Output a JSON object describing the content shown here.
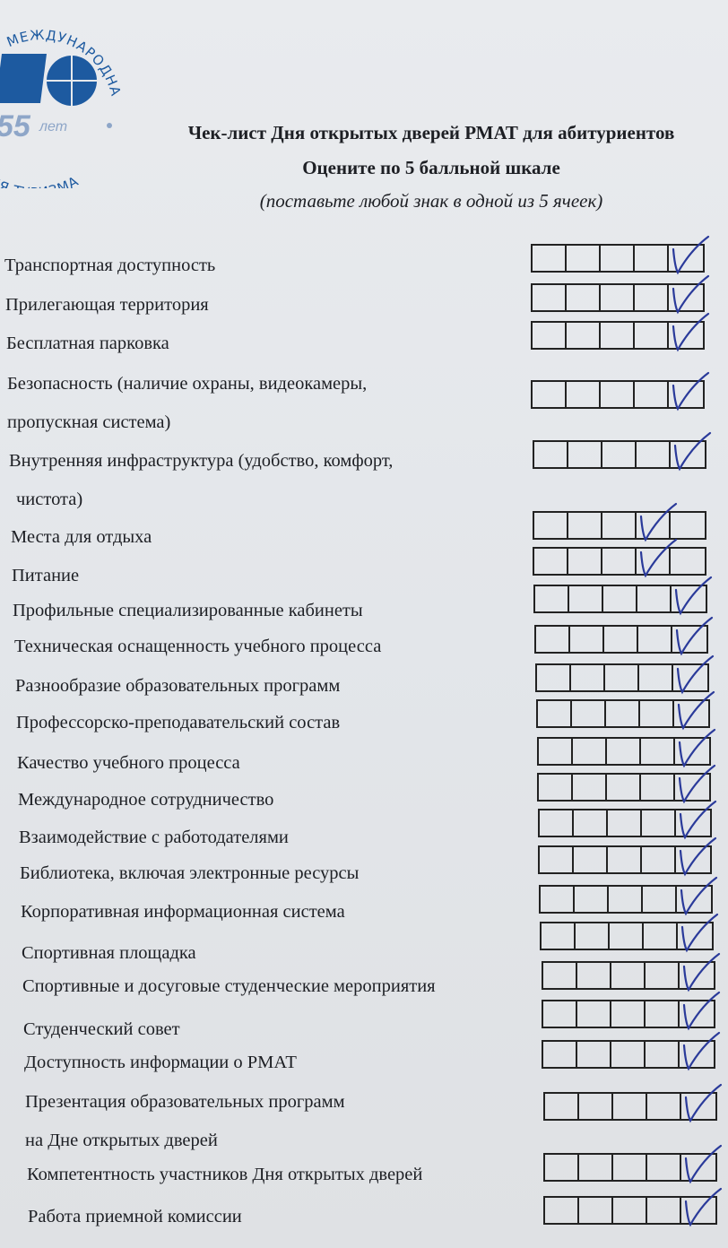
{
  "logo": {
    "arc_text_top": "МЕЖДУНАРОДНАЯ",
    "arc_text_bottom": "ИЯ ТУРИЗМА",
    "years": "55",
    "years_suffix": "лет",
    "color": "#1d5aa0"
  },
  "header": {
    "title": "Чек-лист Дня открытых дверей РМАТ для абитуриентов",
    "subtitle": "Оцените по 5 балльной шкале",
    "instruction": "(поставьте любой знак в одной из 5 ячеек)"
  },
  "scale_max": 5,
  "check_color": "#2a3a9a",
  "items": [
    {
      "label": "Транспортная доступность",
      "rating": 5
    },
    {
      "label": "Прилегающая территория",
      "rating": 5
    },
    {
      "label": "Бесплатная парковка",
      "rating": 5
    },
    {
      "label": "Безопасность (наличие охраны, видеокамеры,",
      "label2": "пропускная система)",
      "rating": 5
    },
    {
      "label": "Внутренняя инфраструктура (удобство, комфорт,",
      "label2": "чистота)",
      "rating": 5
    },
    {
      "label": "Места для отдыха",
      "rating": 4
    },
    {
      "label": "Питание",
      "rating": 4
    },
    {
      "label": "Профильные специализированные кабинеты",
      "rating": 5
    },
    {
      "label": "Техническая оснащенность учебного процесса",
      "rating": 5
    },
    {
      "label": "Разнообразие образовательных программ",
      "rating": 5
    },
    {
      "label": "Профессорско-преподавательский состав",
      "rating": 5
    },
    {
      "label": "Качество учебного процесса",
      "rating": 5
    },
    {
      "label": "Международное сотрудничество",
      "rating": 5
    },
    {
      "label": "Взаимодействие с работодателями",
      "rating": 5
    },
    {
      "label": "Библиотека, включая электронные ресурсы",
      "rating": 5
    },
    {
      "label": "Корпоративная информационная система",
      "rating": 5
    },
    {
      "label": "Спортивная площадка",
      "rating": 5
    },
    {
      "label": "Спортивные и досуговые студенческие мероприятия",
      "rating": 5
    },
    {
      "label": "Студенческий совет",
      "rating": 5
    },
    {
      "label": "Доступность информации о РМАТ",
      "rating": 5
    },
    {
      "label": "Презентация образовательных программ",
      "label2": "на Дне открытых дверей",
      "rating": 5
    },
    {
      "label": "Компетентность участников Дня открытых дверей",
      "rating": 5
    },
    {
      "label": "Работа приемной комиссии",
      "rating": 5
    }
  ]
}
